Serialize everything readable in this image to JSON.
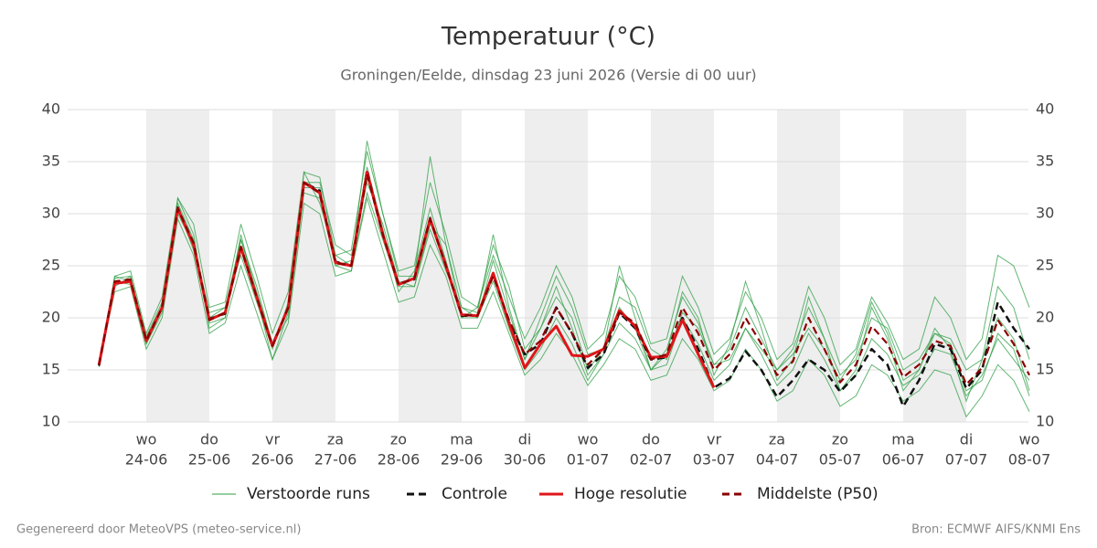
{
  "chart_data": {
    "type": "line",
    "title": "Temperatuur (°C)",
    "subtitle": "Groningen/Eelde, dinsdag 23 juni 2026 (Versie di 00 uur)",
    "footer_left": "Gegenereerd door MeteoVPS (meteo-service.nl)",
    "footer_right": "Bron: ECMWF AIFS/KNMI Ens",
    "categories": [
      null,
      null,
      null,
      "24-06",
      null,
      null,
      null,
      "25-06",
      null,
      null,
      null,
      "26-06",
      null,
      null,
      null,
      "27-06",
      null,
      null,
      null,
      "28-06",
      null,
      null,
      null,
      "29-06",
      null,
      null,
      null,
      "30-06",
      null,
      null,
      null,
      "01-07",
      null,
      null,
      null,
      "02-07",
      null,
      null,
      null,
      "03-07",
      null,
      null,
      null,
      "04-07",
      null,
      null,
      null,
      "05-07",
      null,
      null,
      null,
      "06-07",
      null,
      null,
      null,
      "07-07",
      null,
      null,
      null,
      "08-07"
    ],
    "weekdays": [
      null,
      null,
      null,
      "wo",
      null,
      null,
      null,
      "do",
      null,
      null,
      null,
      "vr",
      null,
      null,
      null,
      "za",
      null,
      null,
      null,
      "zo",
      null,
      null,
      null,
      "ma",
      null,
      null,
      null,
      "di",
      null,
      null,
      null,
      "wo",
      null,
      null,
      null,
      "do",
      null,
      null,
      null,
      "vr",
      null,
      null,
      null,
      "za",
      null,
      null,
      null,
      "zo",
      null,
      null,
      null,
      "ma",
      null,
      null,
      null,
      "di",
      null,
      null,
      null,
      "wo"
    ],
    "ylim": [
      10,
      40
    ],
    "yticks": [
      10,
      15,
      20,
      25,
      30,
      35,
      40
    ],
    "grid": true,
    "ensemble": {
      "name": "Verstoorde runs",
      "color": "#2e9e44",
      "members": [
        [
          15.3,
          24,
          24.5,
          18.5,
          22,
          31.5,
          29,
          21,
          21.5,
          29,
          24,
          18.5,
          22.5,
          34,
          33.5,
          26,
          26.5,
          36,
          30,
          24.5,
          25,
          33,
          28,
          22,
          21,
          26,
          22,
          18,
          21,
          25,
          22,
          17,
          18.5,
          24,
          22,
          17.5,
          18,
          24,
          21,
          16.5,
          18,
          22.5,
          20,
          16,
          17.5,
          23,
          20,
          15.5,
          17,
          22,
          19.5,
          16,
          17,
          22,
          20,
          16,
          18,
          26,
          25,
          21
        ],
        [
          15.6,
          22.5,
          23,
          17,
          20,
          29.5,
          26,
          18.5,
          19.5,
          25,
          20.5,
          16,
          19.5,
          31,
          30,
          24,
          24.5,
          31.5,
          26.5,
          21.5,
          22,
          27,
          24,
          19,
          19,
          22.5,
          18.5,
          14.5,
          16,
          18.5,
          16.5,
          13.5,
          15.5,
          18,
          17,
          14,
          14.5,
          18,
          16,
          13,
          14,
          17,
          15,
          12,
          13,
          16,
          14.5,
          11.5,
          12.5,
          15.5,
          14.5,
          12,
          13,
          15,
          14.5,
          10.5,
          12.5,
          15.5,
          14,
          11
        ],
        [
          15.4,
          24,
          23.5,
          18,
          21,
          31,
          27.5,
          20,
          21,
          27.5,
          23,
          17.5,
          21,
          34,
          31,
          26,
          25,
          37,
          30,
          24,
          24,
          35.5,
          27,
          21,
          20.5,
          28,
          21,
          16,
          20,
          24,
          21,
          16.5,
          17,
          25,
          20,
          15,
          16.5,
          22.5,
          20,
          14.5,
          17.5,
          23.5,
          19,
          14,
          16,
          22,
          18,
          13,
          15,
          21,
          18,
          13,
          15,
          19,
          17,
          12,
          16,
          23,
          21,
          16
        ],
        [
          15.5,
          23,
          24,
          17.5,
          20.5,
          31.5,
          28,
          19,
          20,
          28,
          22,
          16,
          20.5,
          33,
          33,
          27,
          26,
          33,
          29,
          23.5,
          23,
          29,
          27,
          20,
          21,
          27,
          23,
          17,
          19,
          22,
          20,
          15,
          17,
          22,
          21,
          17,
          16,
          20.5,
          19,
          15.5,
          16,
          19,
          17,
          15,
          17,
          21,
          18,
          14.5,
          16,
          20,
          19,
          15,
          16,
          18.5,
          18,
          15,
          16,
          20,
          18,
          13
        ],
        [
          15.6,
          23.8,
          24,
          18.2,
          21.5,
          30,
          27,
          20.5,
          21,
          26,
          21.5,
          17,
          21.5,
          32.5,
          32.5,
          25,
          25.5,
          34.5,
          28.5,
          22.5,
          24.5,
          30.5,
          25.5,
          20,
          20,
          25.5,
          20.5,
          16,
          19,
          23,
          19,
          14.5,
          16.5,
          21,
          19,
          15,
          17,
          22,
          19.5,
          15.5,
          17,
          21,
          18,
          15,
          16.5,
          19,
          17,
          14,
          16.5,
          21.5,
          18.5,
          14,
          15,
          18.5,
          17.5,
          13,
          14,
          18.5,
          17,
          12.5
        ],
        [
          15.3,
          23.5,
          23.2,
          17.5,
          21,
          30.5,
          26.5,
          19.5,
          20,
          27.5,
          22.5,
          17.5,
          20,
          32,
          31.5,
          25,
          24.5,
          32,
          27.5,
          23,
          23,
          28.5,
          24.5,
          21,
          20,
          23.5,
          19,
          15,
          17,
          20,
          17.5,
          14,
          16.5,
          19.5,
          18,
          15,
          15.5,
          20,
          17.5,
          14,
          15.5,
          19,
          16.5,
          13.5,
          15,
          18.5,
          16,
          13,
          14.5,
          18,
          16.5,
          13.5,
          14.5,
          17,
          16.5,
          12.5,
          14.5,
          18,
          16,
          14
        ]
      ]
    },
    "series": [
      {
        "name": "Controle",
        "color": "#111111",
        "dash": true,
        "values": [
          15.4,
          23.4,
          23.6,
          17.9,
          21,
          30.6,
          27,
          19.9,
          20.4,
          26.7,
          22,
          17.4,
          21,
          33,
          32.2,
          25.4,
          25,
          34.2,
          28,
          23.3,
          23.7,
          29.6,
          25,
          20.2,
          20.2,
          24.2,
          19.6,
          16.5,
          17.5,
          21,
          18.5,
          15.2,
          16.5,
          20.5,
          19,
          16,
          16.2,
          20,
          17,
          13.3,
          14.2,
          16.8,
          15,
          12.4,
          14,
          16,
          15,
          12.9,
          14.5,
          17,
          15.5,
          11.5,
          14,
          17.5,
          17,
          13.2,
          15,
          21.5,
          19,
          17
        ]
      },
      {
        "name": "Hoge resolutie",
        "color": "#e0151a",
        "dash": false,
        "values": [
          15.5,
          23.3,
          23.5,
          17.8,
          21,
          30.5,
          27,
          19.8,
          20.5,
          26.8,
          22,
          17.3,
          21,
          33,
          32,
          25.3,
          25,
          34,
          28,
          23.2,
          23.8,
          29.5,
          25,
          20.3,
          20.2,
          24.3,
          19.5,
          15.2,
          17.5,
          19.2,
          16.4,
          16.3,
          17,
          20.7,
          19.2,
          16.2,
          16.3,
          19.8,
          16.5,
          13.3,
          null,
          null,
          null,
          null,
          null,
          null,
          null,
          null,
          null,
          null,
          null,
          null,
          null,
          null,
          null,
          null,
          null,
          null,
          null,
          null
        ]
      },
      {
        "name": "Middelste (P50)",
        "color": "#8b0000",
        "dash": true,
        "values": [
          15.5,
          23.5,
          23.7,
          17.8,
          21,
          30.5,
          27.2,
          19.8,
          20.5,
          26.8,
          22,
          17.3,
          21,
          33,
          32,
          25.3,
          25,
          33.8,
          28,
          23.2,
          23.8,
          29.5,
          25,
          20.3,
          20.2,
          24,
          19.8,
          16.5,
          17.8,
          21,
          18.5,
          15.5,
          17,
          20.5,
          19.5,
          16,
          16.5,
          21,
          18.5,
          15,
          16.5,
          20,
          17.5,
          14.5,
          15.8,
          20,
          17,
          13.8,
          15.5,
          19.2,
          17.5,
          14.3,
          15.5,
          17.8,
          17.3,
          13.6,
          15.2,
          19.8,
          17.5,
          14.5
        ]
      }
    ]
  }
}
